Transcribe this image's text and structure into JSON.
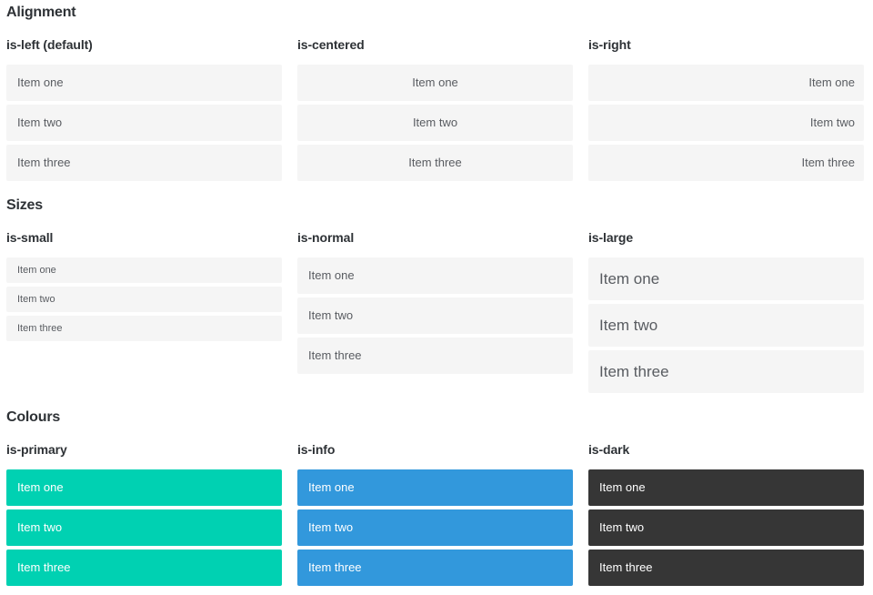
{
  "colors": {
    "primary": "#00d1b2",
    "info": "#3298dc",
    "dark": "#363636",
    "item_bg": "#f5f5f5",
    "item_text": "#595c61",
    "heading_text": "#2e3236",
    "on_color_text": "#ffffff"
  },
  "sections": [
    {
      "title": "Alignment",
      "groups": [
        {
          "label": "is-left (default)",
          "variant": "left",
          "items": [
            "Item one",
            "Item two",
            "Item three"
          ]
        },
        {
          "label": "is-centered",
          "variant": "centered",
          "items": [
            "Item one",
            "Item two",
            "Item three"
          ]
        },
        {
          "label": "is-right",
          "variant": "right",
          "items": [
            "Item one",
            "Item two",
            "Item three"
          ]
        }
      ]
    },
    {
      "title": "Sizes",
      "groups": [
        {
          "label": "is-small",
          "variant": "small",
          "items": [
            "Item one",
            "Item two",
            "Item three"
          ]
        },
        {
          "label": "is-normal",
          "variant": "normal",
          "items": [
            "Item one",
            "Item two",
            "Item three"
          ]
        },
        {
          "label": "is-large",
          "variant": "large",
          "items": [
            "Item one",
            "Item two",
            "Item three"
          ]
        }
      ]
    },
    {
      "title": "Colours",
      "groups": [
        {
          "label": "is-primary",
          "variant": "primary",
          "items": [
            "Item one",
            "Item two",
            "Item three"
          ]
        },
        {
          "label": "is-info",
          "variant": "info",
          "items": [
            "Item one",
            "Item two",
            "Item three"
          ]
        },
        {
          "label": "is-dark",
          "variant": "dark",
          "items": [
            "Item one",
            "Item two",
            "Item three"
          ]
        }
      ]
    }
  ]
}
